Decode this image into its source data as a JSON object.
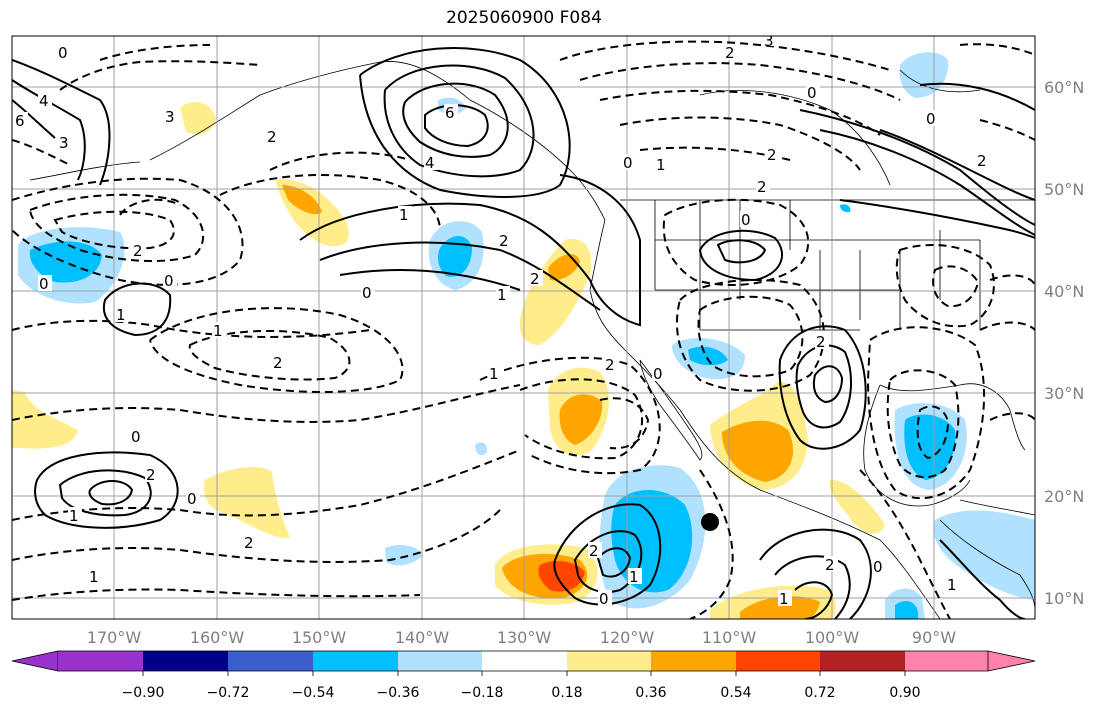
{
  "title": "2025060900 F084",
  "map": {
    "lat_labels": [
      "60°N",
      "50°N",
      "40°N",
      "30°N",
      "20°N",
      "10°N"
    ],
    "lon_labels": [
      "170°W",
      "160°W",
      "150°W",
      "140°W",
      "130°W",
      "120°W",
      "110°W",
      "100°W",
      "90°W"
    ],
    "contour_labels": [
      "0",
      "1",
      "2",
      "3",
      "4",
      "6"
    ],
    "line_color": "#000000",
    "grid_color": "#a0a0a0",
    "marker": "black-dot"
  },
  "colorbar": {
    "ticks": [
      "−0.90",
      "−0.72",
      "−0.54",
      "−0.36",
      "−0.18",
      "0.18",
      "0.36",
      "0.54",
      "0.72",
      "0.90"
    ],
    "colors": [
      "#9932cc",
      "#00008b",
      "#3a5fcd",
      "#00bfff",
      "#b0e2ff",
      "#ffffff",
      "#ffec8b",
      "#ffa500",
      "#ff4500",
      "#b22222",
      "#ff82ab"
    ]
  }
}
